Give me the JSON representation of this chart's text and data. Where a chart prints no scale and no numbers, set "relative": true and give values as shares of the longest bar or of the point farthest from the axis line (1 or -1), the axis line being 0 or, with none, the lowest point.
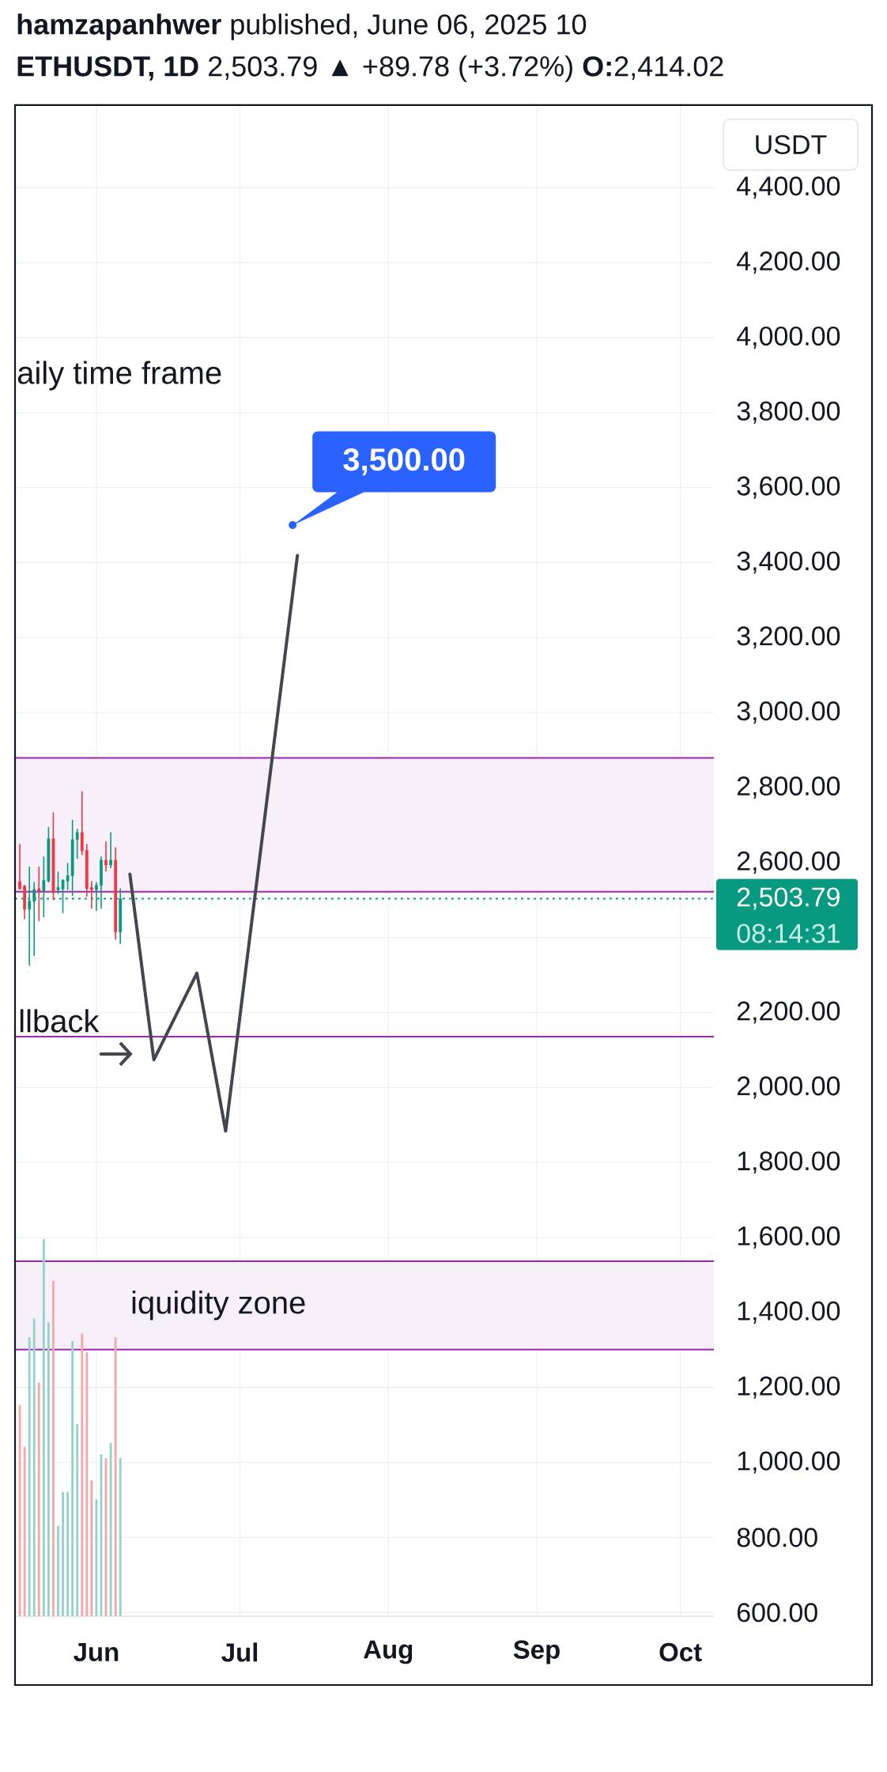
{
  "chart_data": [
    {
      "type": "candlestick",
      "title": "**hamzapanhwer** published, June 06, 2025 10",
      "subtitle": "**ETHUSDT, 1D** 2,503.79 ▲ +89.78 (+3.72%) **O:**2,414.02",
      "ylabel": "USDT",
      "x": [
        "2025-05-16",
        "2025-05-17",
        "2025-05-18",
        "2025-05-19",
        "2025-05-20",
        "2025-05-21",
        "2025-05-22",
        "2025-05-23",
        "2025-05-24",
        "2025-05-25",
        "2025-05-26",
        "2025-05-27",
        "2025-05-28",
        "2025-05-29",
        "2025-05-30",
        "2025-05-31",
        "2025-06-01",
        "2025-06-02",
        "2025-06-03",
        "2025-06-04",
        "2025-06-05",
        "2025-06-06"
      ],
      "ohlc": [
        [
          2550,
          2650,
          2529,
          2529
        ],
        [
          2538,
          2540,
          2449,
          2475
        ],
        [
          2475,
          2589,
          2325,
          2498
        ],
        [
          2496,
          2548,
          2351,
          2529
        ],
        [
          2531,
          2589,
          2444,
          2524
        ],
        [
          2524,
          2616,
          2454,
          2553
        ],
        [
          2550,
          2695,
          2547,
          2664
        ],
        [
          2664,
          2734,
          2500,
          2519
        ],
        [
          2527,
          2576,
          2517,
          2534
        ],
        [
          2529,
          2555,
          2465,
          2554
        ],
        [
          2550,
          2599,
          2527,
          2566
        ],
        [
          2564,
          2714,
          2511,
          2662
        ],
        [
          2661,
          2690,
          2610,
          2681
        ],
        [
          2681,
          2790,
          2620,
          2631
        ],
        [
          2633,
          2650,
          2509,
          2530
        ],
        [
          2534,
          2550,
          2477,
          2527
        ],
        [
          2527,
          2548,
          2471,
          2540
        ],
        [
          2539,
          2616,
          2477,
          2607
        ],
        [
          2607,
          2656,
          2576,
          2593
        ],
        [
          2593,
          2681,
          2585,
          2607
        ],
        [
          2607,
          2641,
          2394,
          2414.02
        ],
        [
          2414.02,
          2531,
          2383,
          2503.79
        ]
      ],
      "colors": [
        "#f23645",
        "#f23645",
        "#089981",
        "#089981",
        "#f23645",
        "#089981",
        "#089981",
        "#f23645",
        "#089981",
        "#089981",
        "#089981",
        "#089981",
        "#089981",
        "#f23645",
        "#f23645",
        "#f23645",
        "#089981",
        "#089981",
        "#f23645",
        "#089981",
        "#f23645",
        "#089981"
      ],
      "series": [
        {
          "type": "line",
          "color": "#434651",
          "x": [
            "2025-06-08",
            "2025-06-13",
            "2025-06-22",
            "2025-06-28",
            "2025-07-13"
          ],
          "values": [
            2569,
            2074,
            2305,
            1884,
            3419
          ]
        }
      ],
      "xlim": [
        "2025-05-15",
        "2025-10-08"
      ],
      "xticks": [
        {
          "value": "2025-06-01",
          "label": "Jun"
        },
        {
          "value": "2025-07-01",
          "label": "Jul"
        },
        {
          "value": "2025-08-01",
          "label": "Aug"
        },
        {
          "value": "2025-09-01",
          "label": "Sep"
        },
        {
          "value": "2025-10-01",
          "label": "Oct"
        }
      ],
      "ylim": [
        590,
        4620
      ],
      "yticks": [
        {
          "value": 600,
          "label": "600.00"
        },
        {
          "value": 800,
          "label": "800.00"
        },
        {
          "value": 1000,
          "label": "1,000.00"
        },
        {
          "value": 1200,
          "label": "1,200.00"
        },
        {
          "value": 1400,
          "label": "1,400.00"
        },
        {
          "value": 1600,
          "label": "1,600.00"
        },
        {
          "value": 1800,
          "label": "1,800.00"
        },
        {
          "value": 2000,
          "label": "2,000.00"
        },
        {
          "value": 2200,
          "label": "2,200.00"
        },
        {
          "value": 2400,
          "label": null
        },
        {
          "value": 2600,
          "label": "2,600.00"
        },
        {
          "value": 2800,
          "label": "2,800.00"
        },
        {
          "value": 3000,
          "label": "3,000.00"
        },
        {
          "value": 3200,
          "label": "3,200.00"
        },
        {
          "value": 3400,
          "label": "3,400.00"
        },
        {
          "value": 3600,
          "label": "3,600.00"
        },
        {
          "value": 3800,
          "label": "3,800.00"
        },
        {
          "value": 4000,
          "label": "4,000.00"
        },
        {
          "value": 4200,
          "label": "4,200.00"
        },
        {
          "value": 4400,
          "label": "4,400.00"
        }
      ],
      "grid": true,
      "bands": [
        {
          "axis": "y",
          "from": 2522,
          "to": 2879,
          "color": "#f8f0f9"
        },
        {
          "axis": "y",
          "from": 1301,
          "to": 1537,
          "color": "#f8f0f9",
          "label": "iquidity zone"
        }
      ],
      "ref_lines": [
        {
          "axis": "y",
          "value": 2879,
          "color": "#9c27b0"
        },
        {
          "axis": "y",
          "value": 2522,
          "color": "#9c27b0"
        },
        {
          "axis": "y",
          "value": 1537,
          "color": "#9c27b0"
        },
        {
          "axis": "y",
          "value": 1301,
          "color": "#9c27b0"
        },
        {
          "axis": "y",
          "value": 2136,
          "color": "#9c27b0",
          "label": "llback"
        },
        {
          "axis": "y",
          "value": 2503.79,
          "color": "#089981",
          "line_style": "dotted",
          "label": "2,503.79"
        }
      ],
      "annotations": [
        "aily time frame",
        {
          "text": "3,500.00",
          "x": "2025-07-12",
          "y": 3500
        },
        "08:14:31"
      ]
    },
    {
      "type": "bar",
      "relative": true,
      "x": [
        "2025-05-16",
        "2025-05-17",
        "2025-05-18",
        "2025-05-19",
        "2025-05-20",
        "2025-05-21",
        "2025-05-22",
        "2025-05-23",
        "2025-05-24",
        "2025-05-25",
        "2025-05-26",
        "2025-05-27",
        "2025-05-28",
        "2025-05-29",
        "2025-05-30",
        "2025-05-31",
        "2025-06-01",
        "2025-06-02",
        "2025-06-03",
        "2025-06-04",
        "2025-06-05",
        "2025-06-06"
      ],
      "values": [
        0.56,
        0.45,
        0.74,
        0.79,
        0.62,
        1,
        0.78,
        0.89,
        0.24,
        0.33,
        0.33,
        0.73,
        0.51,
        0.75,
        0.7,
        0.36,
        0.31,
        0.43,
        0.42,
        0.46,
        0.74,
        0.42
      ],
      "colors": [
        "#f7a6a8",
        "#f7a6a8",
        "#92d2ca",
        "#92d2ca",
        "#f7a6a8",
        "#92d2ca",
        "#92d2ca",
        "#f7a6a8",
        "#92d2ca",
        "#92d2ca",
        "#92d2ca",
        "#92d2ca",
        "#92d2ca",
        "#f7a6a8",
        "#f7a6a8",
        "#f7a6a8",
        "#92d2ca",
        "#92d2ca",
        "#f7a6a8",
        "#92d2ca",
        "#f7a6a8",
        "#92d2ca"
      ],
      "xlim": [
        "2025-05-15",
        "2025-10-08"
      ],
      "tick_labels": false
    }
  ]
}
